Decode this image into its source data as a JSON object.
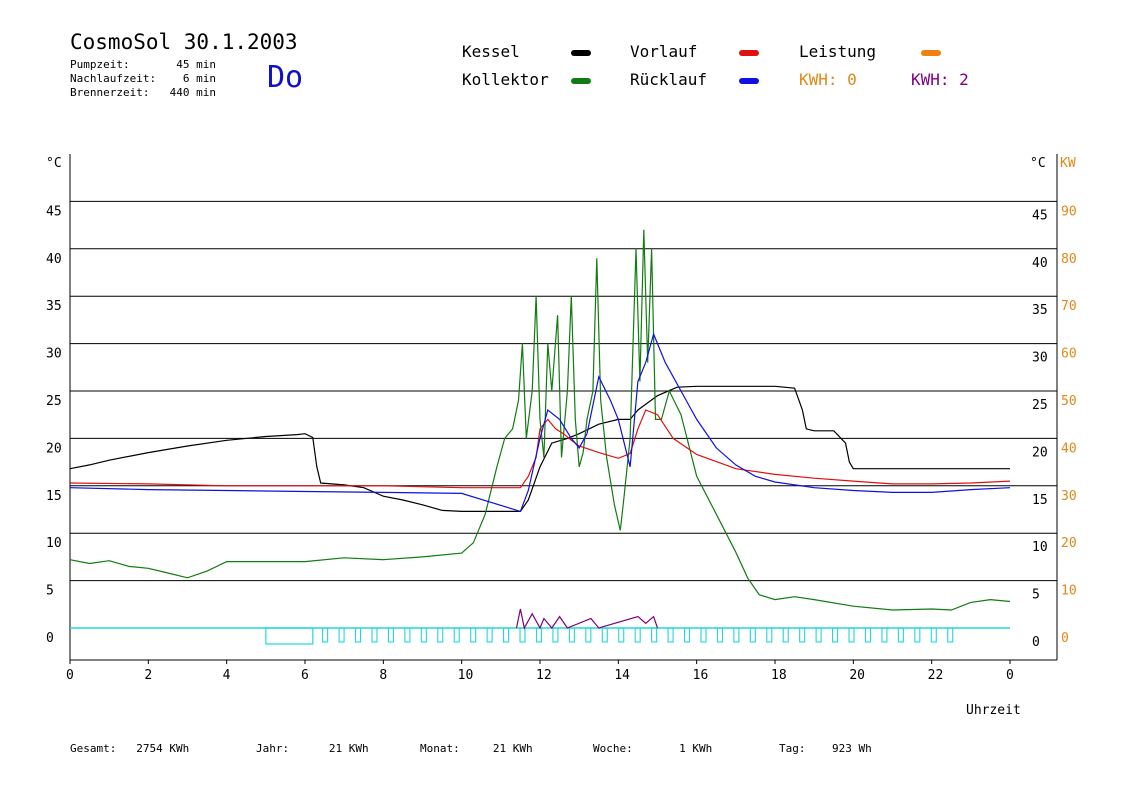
{
  "header": {
    "title": "CosmoSol 30.1.2003",
    "day": "Do",
    "info": [
      {
        "label": "Pumpzeit:",
        "value": "45 min"
      },
      {
        "label": "Nachlaufzeit:",
        "value": "6 min"
      },
      {
        "label": "Brennerzeit:",
        "value": "440 min"
      }
    ]
  },
  "legend": {
    "kessel": {
      "label": "Kessel",
      "color": "#000000"
    },
    "kollektor": {
      "label": "Kollektor",
      "color": "#127b12"
    },
    "vorlauf": {
      "label": "Vorlauf",
      "color": "#e01010"
    },
    "ruecklauf": {
      "label": "Rücklauf",
      "color": "#1010e0"
    },
    "leistung": {
      "label": "Leistung",
      "color": "#f08010"
    },
    "kwh1": {
      "label": "KWH: 0",
      "color": "#e08818"
    },
    "kwh2": {
      "label": "KWH: 2",
      "color": "#800080"
    }
  },
  "footer": [
    {
      "label": "Gesamt:",
      "value": "2754 KWh"
    },
    {
      "label": "Jahr:",
      "value": "21 KWh"
    },
    {
      "label": "Monat:",
      "value": "21 KWh"
    },
    {
      "label": "Woche:",
      "value": "1 KWh"
    },
    {
      "label": "Tag:",
      "value": "923 Wh"
    }
  ],
  "chart_data": {
    "type": "line",
    "xlabel": "Uhrzeit",
    "ylabel_left": "°C",
    "ylabel_right": "°C",
    "ylabel_right2": "KW",
    "xlim": [
      0,
      24
    ],
    "ylim": [
      0,
      50
    ],
    "ylim_kw": [
      0,
      100
    ],
    "x_ticks": [
      "0",
      "2",
      "4",
      "6",
      "8",
      "10",
      "12",
      "14",
      "16",
      "18",
      "20",
      "22",
      "0"
    ],
    "y_ticks": [
      0,
      5,
      10,
      15,
      20,
      25,
      30,
      35,
      40,
      45
    ],
    "y_ticks_kw": [
      0,
      10,
      20,
      30,
      40,
      50,
      60,
      70,
      80,
      90
    ],
    "grid": true,
    "series": [
      {
        "name": "Kessel",
        "color": "#000000",
        "points": [
          [
            0,
            16.8
          ],
          [
            0.5,
            17.2
          ],
          [
            1,
            17.7
          ],
          [
            2,
            18.5
          ],
          [
            3,
            19.2
          ],
          [
            4,
            19.8
          ],
          [
            5,
            20.2
          ],
          [
            5.8,
            20.4
          ],
          [
            6,
            20.5
          ],
          [
            6.2,
            20.1
          ],
          [
            6.3,
            17
          ],
          [
            6.4,
            15.3
          ],
          [
            7,
            15.1
          ],
          [
            7.5,
            14.8
          ],
          [
            8,
            13.9
          ],
          [
            8.5,
            13.5
          ],
          [
            9,
            13
          ],
          [
            9.5,
            12.4
          ],
          [
            10,
            12.3
          ],
          [
            10.5,
            12.3
          ],
          [
            11,
            12.3
          ],
          [
            11.5,
            12.3
          ],
          [
            11.7,
            13.5
          ],
          [
            12,
            17
          ],
          [
            12.3,
            19.5
          ],
          [
            12.7,
            20
          ],
          [
            13,
            20.5
          ],
          [
            13.5,
            21.5
          ],
          [
            14,
            22
          ],
          [
            14.3,
            22
          ],
          [
            14.5,
            23
          ],
          [
            15,
            24.5
          ],
          [
            15.5,
            25.4
          ],
          [
            16,
            25.5
          ],
          [
            17,
            25.5
          ],
          [
            18,
            25.5
          ],
          [
            18.5,
            25.3
          ],
          [
            18.7,
            23
          ],
          [
            18.8,
            21
          ],
          [
            19,
            20.8
          ],
          [
            19.5,
            20.8
          ],
          [
            19.8,
            19.5
          ],
          [
            19.9,
            17.5
          ],
          [
            20,
            16.8
          ],
          [
            21,
            16.8
          ],
          [
            22,
            16.8
          ],
          [
            24,
            16.8
          ]
        ]
      },
      {
        "name": "Kollektor",
        "color": "#127b12",
        "points": [
          [
            0,
            7.2
          ],
          [
            0.5,
            6.8
          ],
          [
            1,
            7.1
          ],
          [
            1.5,
            6.5
          ],
          [
            2,
            6.3
          ],
          [
            2.5,
            5.8
          ],
          [
            3,
            5.3
          ],
          [
            3.5,
            6
          ],
          [
            4,
            7
          ],
          [
            5,
            7
          ],
          [
            6,
            7
          ],
          [
            7,
            7.4
          ],
          [
            8,
            7.2
          ],
          [
            9,
            7.5
          ],
          [
            10,
            7.9
          ],
          [
            10.3,
            9
          ],
          [
            10.6,
            12
          ],
          [
            10.9,
            17
          ],
          [
            11.1,
            20
          ],
          [
            11.3,
            21
          ],
          [
            11.45,
            24
          ],
          [
            11.55,
            30
          ],
          [
            11.65,
            20
          ],
          [
            11.8,
            25
          ],
          [
            11.9,
            35
          ],
          [
            12,
            22
          ],
          [
            12.1,
            18
          ],
          [
            12.2,
            30
          ],
          [
            12.3,
            25
          ],
          [
            12.45,
            33
          ],
          [
            12.55,
            18
          ],
          [
            12.7,
            25
          ],
          [
            12.8,
            35
          ],
          [
            12.9,
            22
          ],
          [
            13,
            17
          ],
          [
            13.1,
            18.5
          ],
          [
            13.2,
            22
          ],
          [
            13.35,
            25
          ],
          [
            13.45,
            39
          ],
          [
            13.55,
            24
          ],
          [
            13.7,
            18
          ],
          [
            13.9,
            13
          ],
          [
            14.05,
            10.3
          ],
          [
            14.15,
            14
          ],
          [
            14.3,
            20
          ],
          [
            14.45,
            40
          ],
          [
            14.55,
            26
          ],
          [
            14.65,
            42
          ],
          [
            14.75,
            28
          ],
          [
            14.85,
            40
          ],
          [
            14.95,
            22
          ],
          [
            15.1,
            22
          ],
          [
            15.3,
            25
          ],
          [
            15.6,
            22.5
          ],
          [
            16,
            16
          ],
          [
            16.5,
            12
          ],
          [
            17,
            8
          ],
          [
            17.3,
            5.3
          ],
          [
            17.6,
            3.5
          ],
          [
            18,
            3
          ],
          [
            18.5,
            3.3
          ],
          [
            19,
            3
          ],
          [
            20,
            2.3
          ],
          [
            21,
            1.9
          ],
          [
            22,
            2
          ],
          [
            22.5,
            1.9
          ],
          [
            23,
            2.7
          ],
          [
            23.5,
            3
          ],
          [
            24,
            2.8
          ]
        ]
      },
      {
        "name": "Vorlauf",
        "color": "#e01010",
        "points": [
          [
            0,
            15.3
          ],
          [
            2,
            15.2
          ],
          [
            4,
            15
          ],
          [
            6,
            15
          ],
          [
            8,
            15
          ],
          [
            10,
            14.8
          ],
          [
            11.5,
            14.8
          ],
          [
            11.7,
            16
          ],
          [
            11.9,
            18
          ],
          [
            12,
            21
          ],
          [
            12.2,
            22
          ],
          [
            12.4,
            21
          ],
          [
            12.6,
            20.5
          ],
          [
            12.8,
            19.8
          ],
          [
            13,
            19.2
          ],
          [
            13.5,
            18.5
          ],
          [
            14,
            17.9
          ],
          [
            14.3,
            18.4
          ],
          [
            14.5,
            21
          ],
          [
            14.7,
            23
          ],
          [
            15,
            22.5
          ],
          [
            15.4,
            20
          ],
          [
            16,
            18.3
          ],
          [
            17,
            16.8
          ],
          [
            18,
            16.2
          ],
          [
            19,
            15.8
          ],
          [
            20,
            15.5
          ],
          [
            21,
            15.2
          ],
          [
            22,
            15.2
          ],
          [
            23,
            15.3
          ],
          [
            24,
            15.5
          ]
        ]
      },
      {
        "name": "Rücklauf",
        "color": "#1010e0",
        "points": [
          [
            0,
            14.8
          ],
          [
            2,
            14.6
          ],
          [
            4,
            14.5
          ],
          [
            6,
            14.4
          ],
          [
            8,
            14.3
          ],
          [
            10,
            14.2
          ],
          [
            11.5,
            12.3
          ],
          [
            11.7,
            14.5
          ],
          [
            12,
            20
          ],
          [
            12.2,
            23
          ],
          [
            12.5,
            22
          ],
          [
            12.8,
            20
          ],
          [
            13,
            19
          ],
          [
            13.2,
            20.5
          ],
          [
            13.5,
            26.5
          ],
          [
            13.8,
            24
          ],
          [
            14,
            22
          ],
          [
            14.3,
            17
          ],
          [
            14.5,
            26
          ],
          [
            14.7,
            28
          ],
          [
            14.9,
            31
          ],
          [
            15.2,
            28
          ],
          [
            15.6,
            25
          ],
          [
            16,
            22
          ],
          [
            16.5,
            19
          ],
          [
            17,
            17.2
          ],
          [
            17.5,
            16
          ],
          [
            18,
            15.4
          ],
          [
            19,
            14.8
          ],
          [
            20,
            14.5
          ],
          [
            21,
            14.3
          ],
          [
            22,
            14.3
          ],
          [
            23,
            14.6
          ],
          [
            24,
            14.8
          ]
        ]
      }
    ],
    "power": {
      "name": "Leistung",
      "color": "#800080",
      "points": [
        [
          11.4,
          0
        ],
        [
          11.5,
          2
        ],
        [
          11.6,
          0
        ],
        [
          11.8,
          1.5
        ],
        [
          12,
          0
        ],
        [
          12.1,
          1
        ],
        [
          12.3,
          0
        ],
        [
          12.5,
          1.2
        ],
        [
          12.7,
          0
        ],
        [
          13.3,
          1
        ],
        [
          13.5,
          0
        ],
        [
          14.5,
          1.2
        ],
        [
          14.7,
          0.5
        ],
        [
          14.9,
          1.2
        ],
        [
          15,
          0
        ]
      ]
    }
  }
}
